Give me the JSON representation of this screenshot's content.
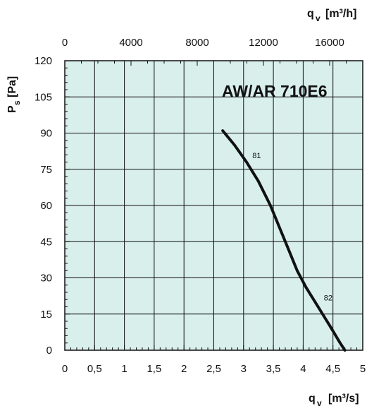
{
  "chart_data": {
    "type": "line",
    "title": "AW/AR 710E6",
    "background_color": "#d9efec",
    "grid": true,
    "x_axis_bottom": {
      "label_main": "q",
      "label_sub": "v",
      "label_unit": "[m³/s]",
      "range": [
        0,
        5
      ],
      "ticks": [
        0,
        0.5,
        1,
        1.5,
        2,
        2.5,
        3,
        3.5,
        4,
        4.5,
        5
      ],
      "tick_labels": [
        "0",
        "0,5",
        "1",
        "1,5",
        "2",
        "2,5",
        "3",
        "3,5",
        "4",
        "4,5",
        "5"
      ]
    },
    "x_axis_top": {
      "label_main": "q",
      "label_sub": "v",
      "label_unit": "[m³/h]",
      "range": [
        0,
        18000
      ],
      "ticks": [
        0,
        4000,
        8000,
        12000,
        16000
      ],
      "tick_labels": [
        "0",
        "4000",
        "8000",
        "12000",
        "16000"
      ]
    },
    "y_axis": {
      "label_main": "P",
      "label_sub": "s",
      "label_unit": "[Pa]",
      "range": [
        0,
        120
      ],
      "ticks": [
        0,
        15,
        30,
        45,
        60,
        75,
        90,
        105,
        120
      ],
      "tick_labels": [
        "0",
        "15",
        "30",
        "45",
        "60",
        "75",
        "90",
        "105",
        "120"
      ]
    },
    "series": [
      {
        "color": "#111111",
        "x": [
          2.65,
          2.85,
          3.05,
          3.25,
          3.45,
          3.6,
          3.75,
          3.9,
          4.05,
          4.25,
          4.45,
          4.62,
          4.7
        ],
        "y": [
          91,
          85,
          78,
          70,
          60,
          51,
          42,
          33,
          26,
          18,
          10,
          3,
          0
        ]
      }
    ],
    "annotations": [
      {
        "text": "81",
        "x": 3.1,
        "y": 79
      },
      {
        "text": "82",
        "x": 4.3,
        "y": 20
      }
    ]
  }
}
